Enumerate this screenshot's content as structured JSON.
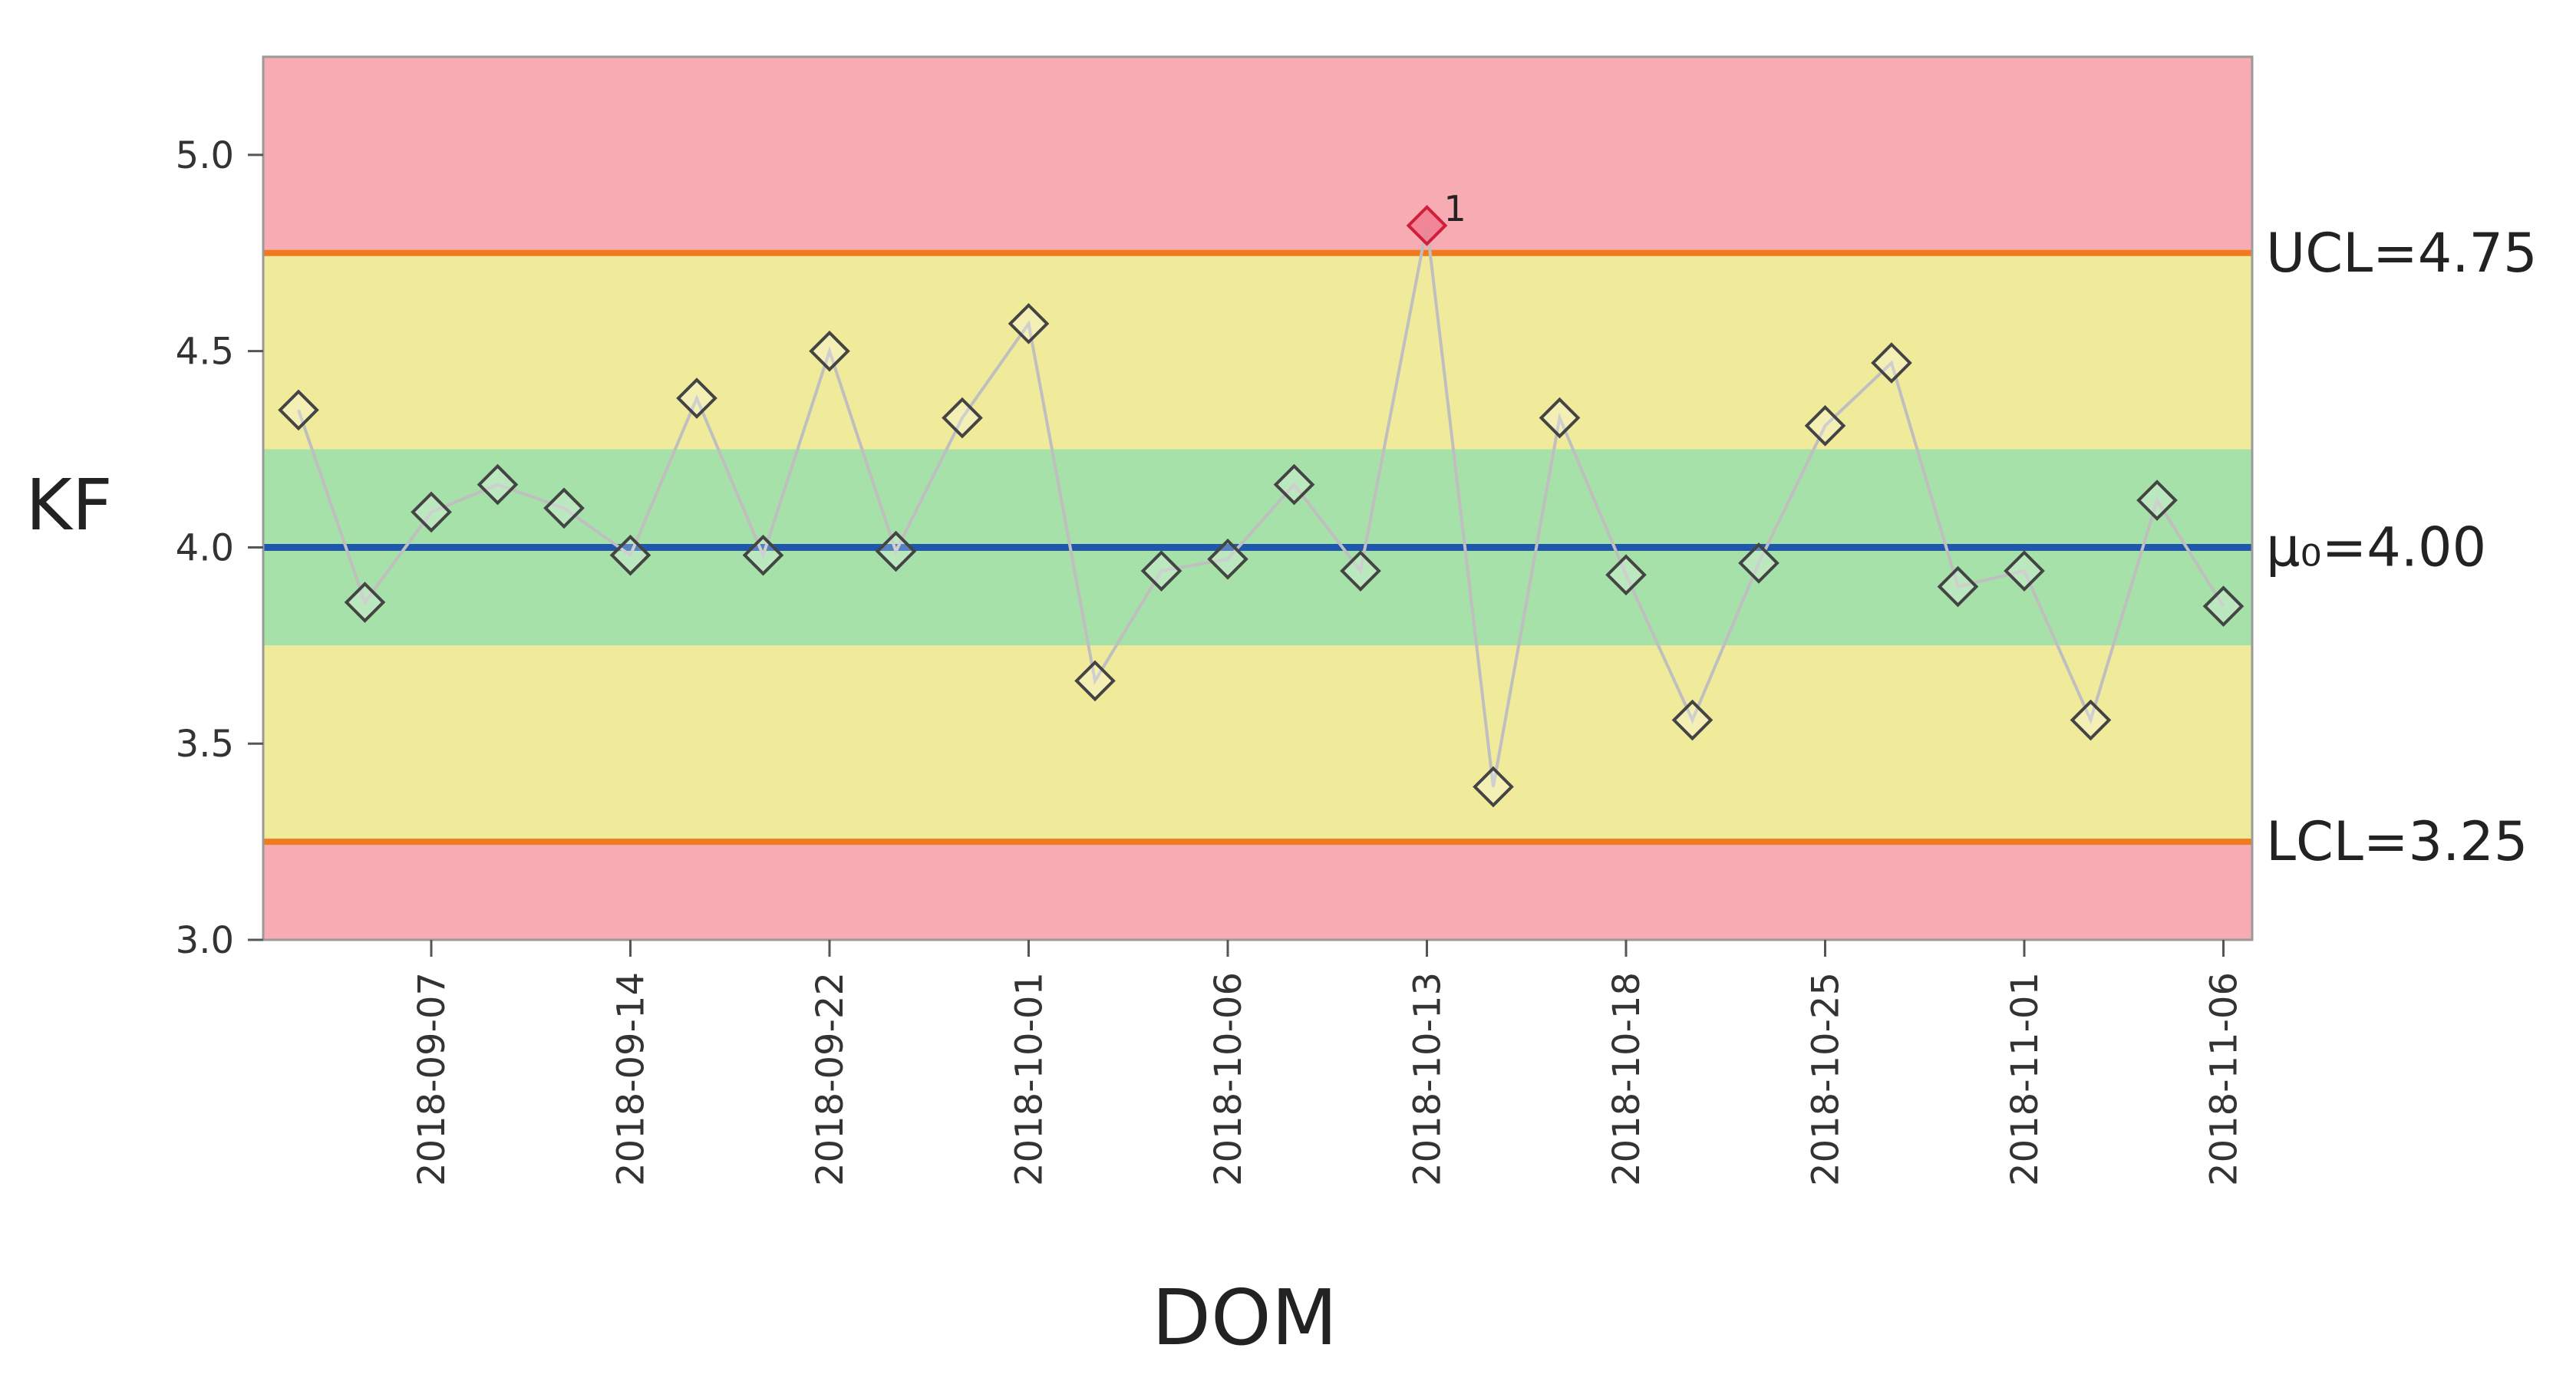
{
  "chart_data": {
    "type": "line",
    "chart_kind": "control chart",
    "title": "",
    "xlabel": "DOM",
    "ylabel": "KF",
    "ylim": [
      3.0,
      5.25
    ],
    "y_ticks": [
      "5.0",
      "4.5",
      "4.0",
      "3.5",
      "3.0"
    ],
    "x_tick_labels": [
      "2018-09-07",
      "2018-09-14",
      "2018-09-22",
      "2018-10-01",
      "2018-10-06",
      "2018-10-13",
      "2018-10-18",
      "2018-10-25",
      "2018-11-01",
      "2018-11-06"
    ],
    "x_tick_point_index": [
      2,
      5,
      8,
      11,
      14,
      17,
      20,
      23,
      26,
      29
    ],
    "grid": false,
    "legend": "none",
    "series": [
      {
        "values": [
          4.35,
          3.86,
          4.09,
          4.16,
          4.1,
          3.98,
          4.38,
          3.98,
          4.5,
          3.99,
          4.33,
          4.57,
          3.66,
          3.94,
          3.97,
          4.16,
          3.94,
          4.82,
          3.39,
          4.33,
          3.93,
          3.56,
          3.96,
          4.31,
          4.47,
          3.9,
          3.94,
          3.56,
          4.12,
          3.85
        ]
      }
    ],
    "center_line": {
      "value": 4.0,
      "label": "μ₀=4.00"
    },
    "ucl": {
      "value": 4.75,
      "label": "UCL=4.75"
    },
    "lcl": {
      "value": 3.25,
      "label": "LCL=3.25"
    },
    "zones": [
      {
        "from": 4.75,
        "to": 5.25,
        "color": "#f7abb3"
      },
      {
        "from": 4.25,
        "to": 4.75,
        "color": "#f0ea9b"
      },
      {
        "from": 3.75,
        "to": 4.25,
        "color": "#a5e1a8"
      },
      {
        "from": 3.25,
        "to": 3.75,
        "color": "#f0ea9b"
      },
      {
        "from": 3.0,
        "to": 3.25,
        "color": "#f7abb3"
      }
    ],
    "flagged_points": [
      {
        "index": 17,
        "annotation": "1"
      }
    ],
    "colors": {
      "center_line": "#1f57ad",
      "limit_line": "#f07a1e",
      "connector": "#bfbfbf",
      "marker_stroke": "#444444",
      "flag_stroke": "#d11f3b"
    }
  }
}
